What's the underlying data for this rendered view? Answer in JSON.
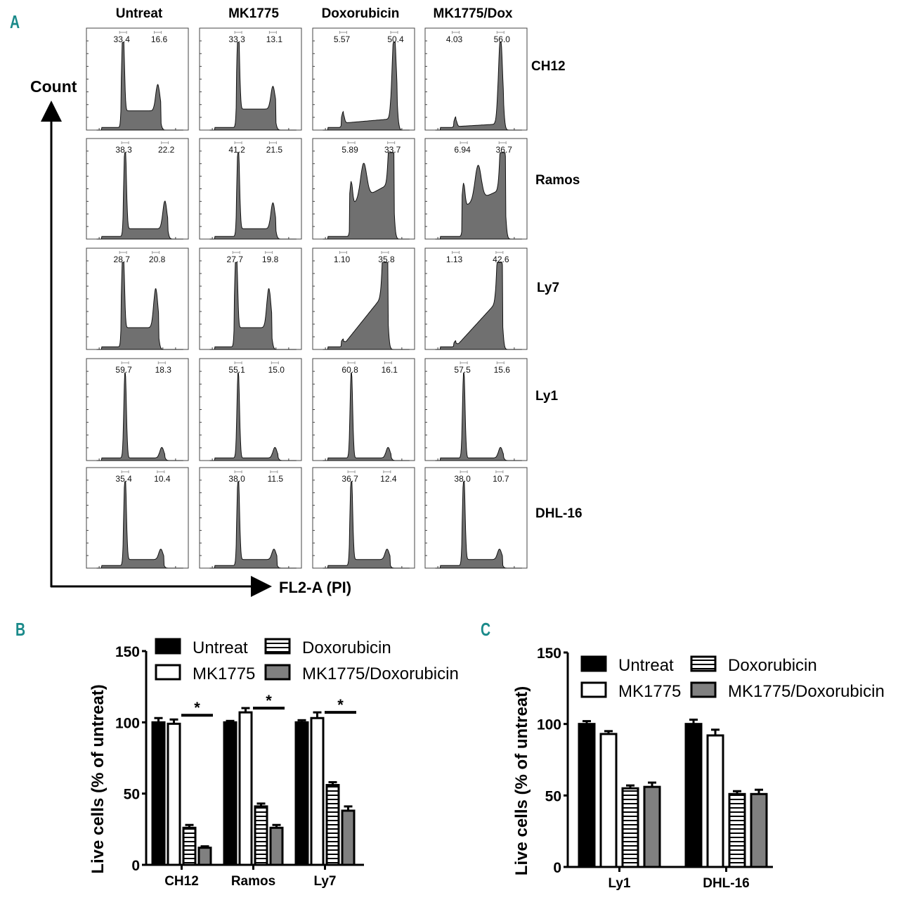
{
  "panel_labels": {
    "a": "A",
    "b": "B",
    "c": "C"
  },
  "panel_a": {
    "columns": [
      "Untreat",
      "MK1775",
      "Doxorubicin",
      "MK1775/Dox"
    ],
    "rows": [
      "CH12",
      "Ramos",
      "Ly7",
      "Ly1",
      "DHL-16"
    ],
    "y_axis_label": "Count",
    "x_axis_label": "FL2-A (PI)",
    "gates": [
      [
        [
          "33.4",
          "16.6"
        ],
        [
          "33.3",
          "13.1"
        ],
        [
          "5.57",
          "50.4"
        ],
        [
          "4.03",
          "56.0"
        ]
      ],
      [
        [
          "38.3",
          "22.2"
        ],
        [
          "41.2",
          "21.5"
        ],
        [
          "5.89",
          "33.7"
        ],
        [
          "6.94",
          "36.7"
        ]
      ],
      [
        [
          "28.7",
          "20.8"
        ],
        [
          "27.7",
          "19.8"
        ],
        [
          "1.10",
          "35.8"
        ],
        [
          "1.13",
          "42.6"
        ]
      ],
      [
        [
          "59.7",
          "18.3"
        ],
        [
          "55.1",
          "15.0"
        ],
        [
          "60.8",
          "16.1"
        ],
        [
          "57.5",
          "15.6"
        ]
      ],
      [
        [
          "35.4",
          "10.4"
        ],
        [
          "38.0",
          "11.5"
        ],
        [
          "36.7",
          "12.4"
        ],
        [
          "38.0",
          "10.7"
        ]
      ]
    ]
  },
  "chart_data": [
    {
      "type": "bar",
      "panel": "B",
      "categories": [
        "CH12",
        "Ramos",
        "Ly7"
      ],
      "series": [
        {
          "name": "Untreat",
          "values": [
            100,
            100,
            100
          ],
          "errors": [
            3,
            1,
            1.5
          ],
          "color": "#000000",
          "pattern": "solid"
        },
        {
          "name": "MK1775",
          "values": [
            99,
            107,
            103
          ],
          "errors": [
            3,
            3,
            4
          ],
          "color": "#ffffff",
          "pattern": "open"
        },
        {
          "name": "Doxorubicin",
          "values": [
            26,
            41,
            56
          ],
          "errors": [
            2,
            2,
            2
          ],
          "color": "#ffffff",
          "pattern": "horizontal-stripes"
        },
        {
          "name": "MK1775/Doxorubicin",
          "values": [
            12,
            26,
            38
          ],
          "errors": [
            1,
            2,
            3
          ],
          "color": "#808080",
          "pattern": "solid"
        }
      ],
      "significance": [
        "*",
        "*",
        "*"
      ],
      "ylabel": "Live cells (% of untreat)",
      "xlabel": "",
      "ylim": [
        0,
        150
      ],
      "yticks": [
        "0",
        "50",
        "100",
        "150"
      ],
      "legend": "top"
    },
    {
      "type": "bar",
      "panel": "C",
      "categories": [
        "Ly1",
        "DHL-16"
      ],
      "series": [
        {
          "name": "Untreat",
          "values": [
            100,
            100
          ],
          "errors": [
            2,
            3
          ],
          "color": "#000000",
          "pattern": "solid"
        },
        {
          "name": "MK1775",
          "values": [
            93,
            92
          ],
          "errors": [
            2,
            4
          ],
          "color": "#ffffff",
          "pattern": "open"
        },
        {
          "name": "Doxorubicin",
          "values": [
            55,
            51
          ],
          "errors": [
            2,
            2
          ],
          "color": "#ffffff",
          "pattern": "horizontal-stripes"
        },
        {
          "name": "MK1775/Doxorubicin",
          "values": [
            56,
            51
          ],
          "errors": [
            3,
            3
          ],
          "color": "#808080",
          "pattern": "solid"
        }
      ],
      "ylabel": "Live cells (% of untreat)",
      "xlabel": "",
      "ylim": [
        0,
        150
      ],
      "yticks": [
        "0",
        "50",
        "100",
        "150"
      ],
      "legend": "top"
    }
  ]
}
